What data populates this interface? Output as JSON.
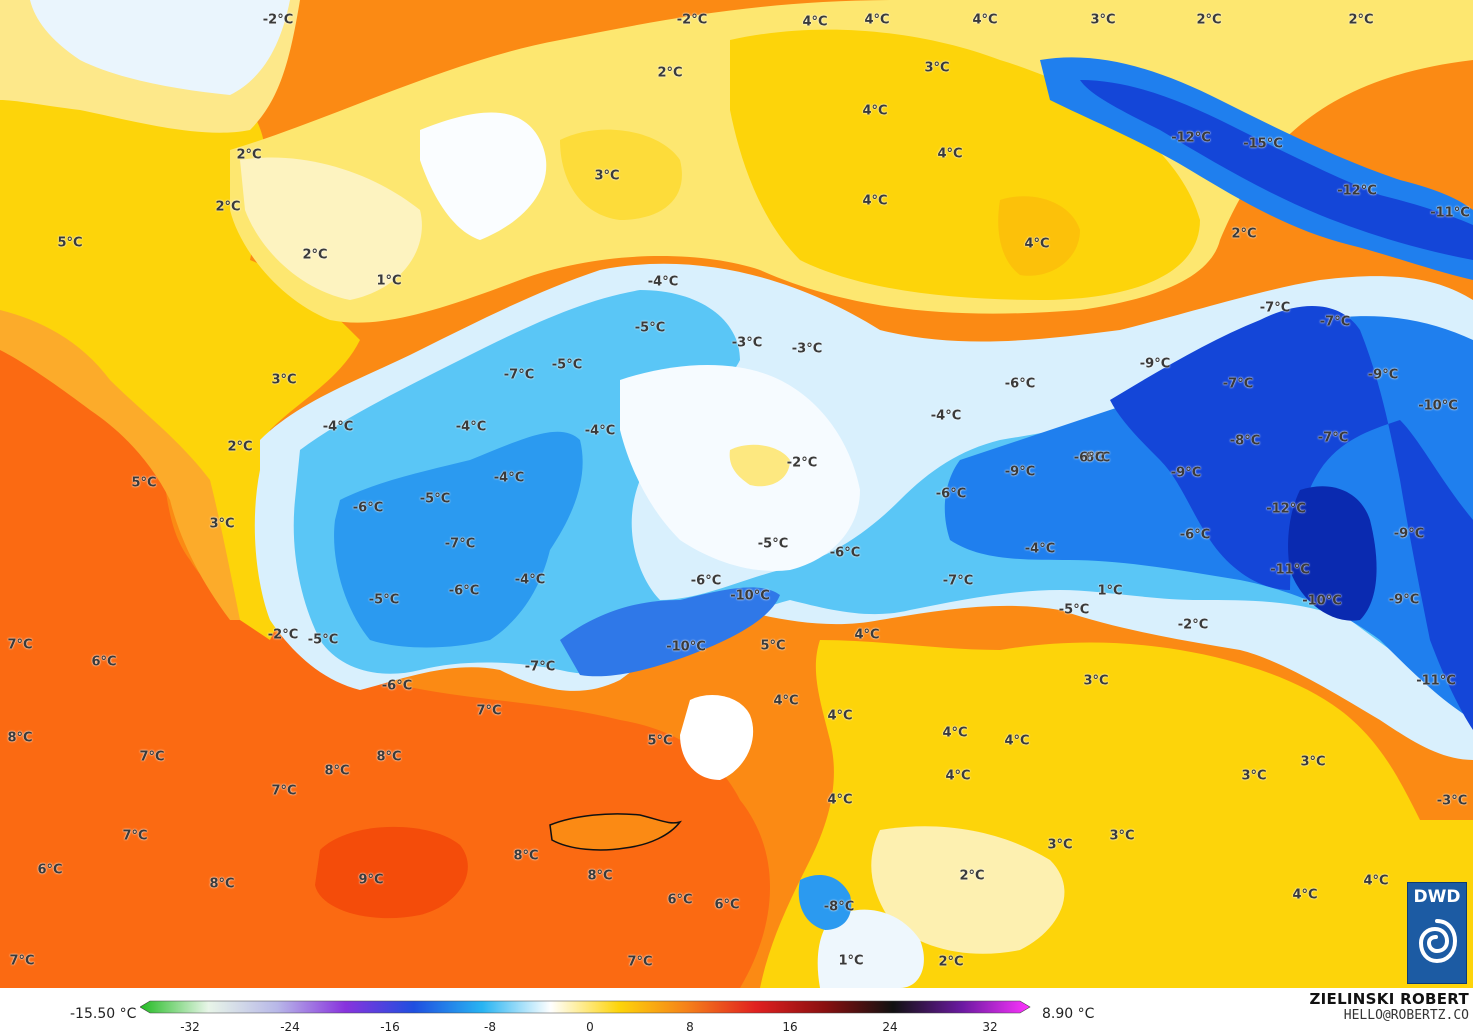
{
  "map": {
    "colors": {
      "hot": "#fb5a0a",
      "warm_orange": "#fb8a14",
      "orange_light": "#fcb532",
      "yellow": "#fdd40a",
      "yellow_light": "#fde96a",
      "cream": "#fdf3c0",
      "near_zero_white": "#f6fbff",
      "pale_blue": "#c9ebfb",
      "blue_light": "#6fcef8",
      "cyan": "#28b4f2",
      "blue_mid": "#1f86ee",
      "blue_deep": "#1446d8",
      "blue_darkest": "#0a2ab0",
      "coast_line": "#111111",
      "border_line": "#555555"
    },
    "temperature_labels": [
      {
        "text": "-2°C"
      },
      {
        "text": "-2°C"
      },
      {
        "text": "4°C"
      },
      {
        "text": "4°C"
      },
      {
        "text": "4°C"
      },
      {
        "text": "3°C"
      },
      {
        "text": "2°C"
      },
      {
        "text": "2°C"
      },
      {
        "text": "2°C"
      },
      {
        "text": "3°C"
      },
      {
        "text": "4°C"
      },
      {
        "text": "3°C"
      },
      {
        "text": "4°C"
      },
      {
        "text": "4°C"
      },
      {
        "text": "4°C"
      },
      {
        "text": "2°C"
      },
      {
        "text": "2°C"
      },
      {
        "text": "5°C"
      },
      {
        "text": "2°C"
      },
      {
        "text": "1°C"
      },
      {
        "text": "-12°C"
      },
      {
        "text": "-15°C"
      },
      {
        "text": "-12°C"
      },
      {
        "text": "-11°C"
      },
      {
        "text": "2°C"
      },
      {
        "text": "-4°C"
      },
      {
        "text": "-5°C"
      },
      {
        "text": "-3°C"
      },
      {
        "text": "-3°C"
      },
      {
        "text": "-5°C"
      },
      {
        "text": "-7°C"
      },
      {
        "text": "3°C"
      },
      {
        "text": "-7°C"
      },
      {
        "text": "-7°C"
      },
      {
        "text": "-9°C"
      },
      {
        "text": "-6°C"
      },
      {
        "text": "-7°C"
      },
      {
        "text": "-9°C"
      },
      {
        "text": "-10°C"
      },
      {
        "text": "-4°C"
      },
      {
        "text": "-4°C"
      },
      {
        "text": "-4°C"
      },
      {
        "text": "-4°C"
      },
      {
        "text": "2°C"
      },
      {
        "text": "-2°C"
      },
      {
        "text": "-8°C"
      },
      {
        "text": "-7°C"
      },
      {
        "text": "5°C"
      },
      {
        "text": "-4°C"
      },
      {
        "text": "-6°C"
      },
      {
        "text": "-5°C"
      },
      {
        "text": "-9°C"
      },
      {
        "text": "-6°C"
      },
      {
        "text": "-9°C"
      },
      {
        "text": "-6°C"
      },
      {
        "text": "3°C"
      },
      {
        "text": "-6°C"
      },
      {
        "text": "-12°C"
      },
      {
        "text": "-6°C"
      },
      {
        "text": "-7°C"
      },
      {
        "text": "-5°C"
      },
      {
        "text": "-6°C"
      },
      {
        "text": "-4°C"
      },
      {
        "text": "-9°C"
      },
      {
        "text": "-6°C"
      },
      {
        "text": "-4°C"
      },
      {
        "text": "-6°C"
      },
      {
        "text": "-10°C"
      },
      {
        "text": "-7°C"
      },
      {
        "text": "1°C"
      },
      {
        "text": "-11°C"
      },
      {
        "text": "-5°C"
      },
      {
        "text": "-5°C"
      },
      {
        "text": "-2°C"
      },
      {
        "text": "-10°C"
      },
      {
        "text": "-9°C"
      },
      {
        "text": "-5°C"
      },
      {
        "text": "-2°C"
      },
      {
        "text": "7°C"
      },
      {
        "text": "6°C"
      },
      {
        "text": "-10°C"
      },
      {
        "text": "5°C"
      },
      {
        "text": "4°C"
      },
      {
        "text": "-7°C"
      },
      {
        "text": "-6°C"
      },
      {
        "text": "3°C"
      },
      {
        "text": "-11°C"
      },
      {
        "text": "4°C"
      },
      {
        "text": "7°C"
      },
      {
        "text": "4°C"
      },
      {
        "text": "5°C"
      },
      {
        "text": "4°C"
      },
      {
        "text": "4°C"
      },
      {
        "text": "8°C"
      },
      {
        "text": "7°C"
      },
      {
        "text": "8°C"
      },
      {
        "text": "7°C"
      },
      {
        "text": "4°C"
      },
      {
        "text": "3°C"
      },
      {
        "text": "3°C"
      },
      {
        "text": "8°C"
      },
      {
        "text": "-3°C"
      },
      {
        "text": "4°C"
      },
      {
        "text": "3°C"
      },
      {
        "text": "7°C"
      },
      {
        "text": "3°C"
      },
      {
        "text": "8°C"
      },
      {
        "text": "6°C"
      },
      {
        "text": "9°C"
      },
      {
        "text": "8°C"
      },
      {
        "text": "8°C"
      },
      {
        "text": "2°C"
      },
      {
        "text": "4°C"
      },
      {
        "text": "4°C"
      },
      {
        "text": "6°C"
      },
      {
        "text": "6°C"
      },
      {
        "text": "-8°C"
      },
      {
        "text": "7°C"
      },
      {
        "text": "7°C"
      },
      {
        "text": "1°C"
      },
      {
        "text": "2°C"
      }
    ]
  },
  "legend": {
    "min_label": "-15.50 °C",
    "max_label": "8.90 °C",
    "ticks": [
      "-32",
      "-24",
      "-16",
      "-8",
      "0",
      "8",
      "16",
      "24",
      "32"
    ],
    "gradient_colors": [
      "#22bb22",
      "#e8f5e8",
      "#b8b8e8",
      "#8833dd",
      "#1f4fe0",
      "#28b4f2",
      "#ffffff",
      "#fdd40a",
      "#f5801a",
      "#e02020",
      "#8a1010",
      "#111111",
      "#6a1aa0",
      "#ff33ff"
    ]
  },
  "branding": {
    "author": "ZIELINSKI ROBERT",
    "email": "HELLO@ROBERTZ.CO",
    "badge": "DWD",
    "badge_icon": "dwd-spiral-icon"
  }
}
